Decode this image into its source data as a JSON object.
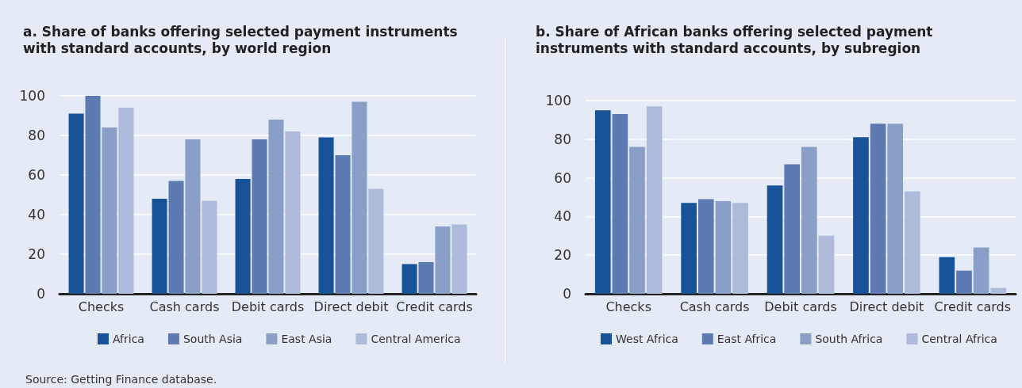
{
  "chart_data": [
    {
      "type": "bar",
      "title": "a. Share of banks offering selected payment instruments with standard accounts, by world region",
      "categories": [
        "Checks",
        "Cash cards",
        "Debit cards",
        "Direct debit",
        "Credit cards"
      ],
      "series": [
        {
          "name": "Africa",
          "color": "#175396",
          "values": [
            91,
            48,
            58,
            79,
            15
          ]
        },
        {
          "name": "South Asia",
          "color": "#5e7ab3",
          "values": [
            100,
            57,
            78,
            70,
            16
          ]
        },
        {
          "name": "East Asia",
          "color": "#8a9fc8",
          "values": [
            84,
            78,
            88,
            97,
            34
          ]
        },
        {
          "name": "Central America",
          "color": "#aebad9",
          "values": [
            94,
            47,
            82,
            53,
            35
          ]
        }
      ],
      "ylim": [
        0,
        100
      ],
      "yticks": [
        0,
        20,
        40,
        60,
        80,
        100
      ],
      "grid": "y",
      "legend": "bottom",
      "annotations": [
        "Source: Getting Finance database."
      ]
    },
    {
      "type": "bar",
      "title": "b. Share of African banks offering selected payment instruments with standard accounts, by subregion",
      "categories": [
        "Checks",
        "Cash cards",
        "Debit cards",
        "Direct debit",
        "Credit cards"
      ],
      "series": [
        {
          "name": "West Africa",
          "color": "#175396",
          "values": [
            95,
            47,
            56,
            81,
            19
          ]
        },
        {
          "name": "East Africa",
          "color": "#5e7ab3",
          "values": [
            93,
            49,
            67,
            88,
            12
          ]
        },
        {
          "name": "South Africa",
          "color": "#8a9fc8",
          "values": [
            76,
            48,
            76,
            88,
            24
          ]
        },
        {
          "name": "Central Africa",
          "color": "#aebad9",
          "values": [
            97,
            47,
            30,
            53,
            3
          ]
        }
      ],
      "ylim": [
        0,
        100
      ],
      "yticks": [
        0,
        20,
        40,
        60,
        80,
        100
      ],
      "grid": "y",
      "legend": "bottom"
    }
  ]
}
